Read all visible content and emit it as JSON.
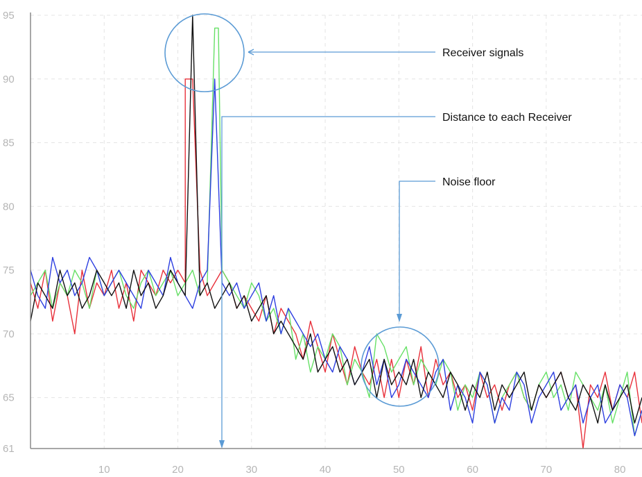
{
  "chart_data": {
    "type": "line",
    "xlim": [
      0,
      83
    ],
    "ylim": [
      61,
      95
    ],
    "x_ticks": [
      10,
      20,
      30,
      40,
      50,
      60,
      70,
      80
    ],
    "y_ticks": [
      61,
      65,
      70,
      75,
      80,
      85,
      90,
      95
    ],
    "grid": true,
    "x": [
      0,
      1,
      2,
      3,
      4,
      5,
      6,
      7,
      8,
      9,
      10,
      11,
      12,
      13,
      14,
      15,
      16,
      17,
      18,
      19,
      20,
      21,
      22,
      23,
      24,
      25,
      26,
      27,
      28,
      29,
      30,
      31,
      32,
      33,
      34,
      35,
      36,
      37,
      38,
      39,
      40,
      41,
      42,
      43,
      44,
      45,
      46,
      47,
      48,
      49,
      50,
      51,
      52,
      53,
      54,
      55,
      56,
      57,
      58,
      59,
      60,
      61,
      62,
      63,
      64,
      65,
      66,
      67,
      68,
      69,
      70,
      71,
      72,
      73,
      74,
      75,
      76,
      77,
      78,
      79,
      80,
      81,
      82,
      83
    ],
    "series": [
      {
        "color": "#e8303a",
        "values": [
          74,
          72,
          75,
          71,
          74,
          73,
          70,
          75,
          72,
          74,
          73,
          75,
          72,
          74,
          71,
          75,
          74,
          73,
          75,
          74,
          75,
          74,
          90,
          75,
          73,
          74,
          75,
          74,
          72,
          73,
          72,
          71,
          73,
          70,
          72,
          71,
          70,
          68,
          71,
          69,
          67,
          70,
          68,
          66,
          69,
          67,
          66,
          68,
          65,
          68,
          65,
          68,
          66,
          69,
          65,
          68,
          66,
          67,
          65,
          66,
          64,
          67,
          65,
          66,
          64,
          66,
          67,
          65,
          64,
          66,
          65,
          66,
          67,
          65,
          66,
          61,
          66,
          65,
          67,
          64,
          66,
          65,
          67,
          63
        ],
        "peak": {
          "x": 21,
          "y": 90
        }
      },
      {
        "color": "#66e066",
        "values": [
          73,
          74,
          75,
          72,
          74,
          73,
          75,
          74,
          72,
          75,
          73,
          74,
          75,
          73,
          72,
          74,
          75,
          73,
          74,
          75,
          73,
          74,
          75,
          73,
          74,
          94,
          75,
          74,
          73,
          72,
          74,
          73,
          71,
          72,
          70,
          72,
          68,
          70,
          67,
          69,
          68,
          70,
          69,
          66,
          68,
          67,
          65,
          70,
          69,
          67,
          68,
          69,
          66,
          68,
          67,
          66,
          68,
          67,
          64,
          66,
          65,
          67,
          66,
          63,
          65,
          66,
          67,
          65,
          64,
          66,
          67,
          65,
          66,
          64,
          67,
          66,
          65,
          64,
          66,
          63,
          65,
          67,
          62,
          64
        ],
        "peak": {
          "x": 25.5,
          "y": 94
        }
      },
      {
        "color": "#2c3ee0",
        "values": [
          75,
          73,
          72,
          76,
          74,
          75,
          73,
          74,
          76,
          75,
          73,
          74,
          75,
          74,
          73,
          72,
          75,
          74,
          73,
          76,
          74,
          73,
          72,
          74,
          75,
          90,
          74,
          73,
          74,
          72,
          73,
          74,
          71,
          73,
          70,
          72,
          71,
          70,
          69,
          70,
          68,
          67,
          69,
          68,
          66,
          67,
          69,
          66,
          68,
          65,
          66,
          68,
          67,
          66,
          65,
          67,
          68,
          64,
          66,
          65,
          63,
          67,
          66,
          63,
          65,
          64,
          67,
          66,
          63,
          65,
          66,
          67,
          64,
          65,
          66,
          63,
          65,
          66,
          63,
          64,
          66,
          65,
          62,
          64
        ],
        "peak": {
          "x": 25,
          "y": 90
        }
      },
      {
        "color": "#111111",
        "values": [
          71,
          74,
          73,
          72,
          75,
          73,
          74,
          72,
          73,
          75,
          74,
          73,
          74,
          72,
          75,
          73,
          74,
          72,
          73,
          75,
          74,
          73,
          95,
          73,
          74,
          72,
          73,
          74,
          72,
          73,
          71,
          72,
          73,
          70,
          71,
          70,
          69,
          68,
          70,
          67,
          68,
          69,
          67,
          68,
          66,
          67,
          68,
          65,
          68,
          66,
          67,
          66,
          68,
          65,
          67,
          66,
          65,
          67,
          66,
          64,
          66,
          65,
          67,
          64,
          66,
          65,
          66,
          67,
          64,
          66,
          65,
          66,
          67,
          65,
          64,
          66,
          65,
          63,
          66,
          64,
          65,
          66,
          63,
          65
        ],
        "peak": {
          "x": 22,
          "y": 95
        }
      }
    ],
    "annotations": {
      "receiver_signals": "Receiver signals",
      "distance": "Distance to each Receiver",
      "noise_floor": "Noise floor"
    }
  }
}
